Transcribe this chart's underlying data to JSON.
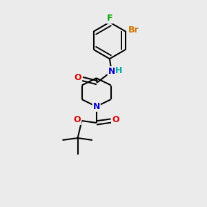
{
  "bg_color": "#ebebeb",
  "atom_colors": {
    "C": "#000000",
    "N": "#0000cc",
    "O": "#dd0000",
    "F": "#00aa00",
    "Br": "#cc7700",
    "H": "#00aaaa"
  },
  "figsize": [
    3.0,
    3.0
  ],
  "dpi": 100,
  "xlim": [
    0,
    10
  ],
  "ylim": [
    0,
    10
  ]
}
